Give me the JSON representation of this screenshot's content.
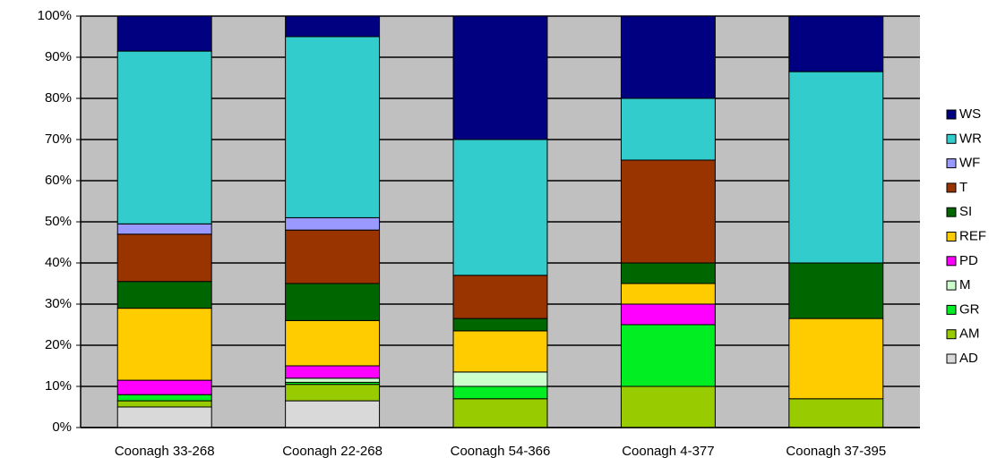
{
  "chart_data": {
    "type": "stacked_bar_percent",
    "categories": [
      "Coonagh 33-268",
      "Coonagh 22-268",
      "Coonagh 54-366",
      "Coonagh 4-377",
      "Coonagh 37-395"
    ],
    "series": [
      {
        "name": "AD",
        "color": "#d9d9d9",
        "values": [
          5,
          6.5,
          0,
          0,
          0
        ]
      },
      {
        "name": "AM",
        "color": "#99cc00",
        "values": [
          1.5,
          4,
          7,
          10,
          7
        ]
      },
      {
        "name": "GR",
        "color": "#00ee22",
        "values": [
          1.5,
          0.5,
          3,
          15,
          0
        ]
      },
      {
        "name": "M",
        "color": "#ccffcc",
        "values": [
          0,
          1,
          3.5,
          0,
          0
        ]
      },
      {
        "name": "PD",
        "color": "#ff00ff",
        "values": [
          3.5,
          3,
          0,
          5,
          0
        ]
      },
      {
        "name": "REF",
        "color": "#ffcc00",
        "values": [
          17.5,
          11,
          10,
          5,
          19.5
        ]
      },
      {
        "name": "SI",
        "color": "#006600",
        "values": [
          6.5,
          9,
          3,
          5,
          13.5
        ]
      },
      {
        "name": "T",
        "color": "#993300",
        "values": [
          11.5,
          13,
          10.5,
          25,
          0
        ]
      },
      {
        "name": "WF",
        "color": "#9999ff",
        "values": [
          2.5,
          3,
          0,
          0,
          0
        ]
      },
      {
        "name": "WR",
        "color": "#33cccc",
        "values": [
          42,
          44,
          33,
          15,
          46.5
        ]
      },
      {
        "name": "WS",
        "color": "#000080",
        "values": [
          8.5,
          5,
          30,
          20,
          13.5
        ]
      }
    ],
    "ylim": [
      0,
      100
    ],
    "yticks": [
      {
        "value": 0,
        "label": "0%"
      },
      {
        "value": 10,
        "label": "10%"
      },
      {
        "value": 20,
        "label": "20%"
      },
      {
        "value": 30,
        "label": "30%"
      },
      {
        "value": 40,
        "label": "40%"
      },
      {
        "value": 50,
        "label": "50%"
      },
      {
        "value": 60,
        "label": "60%"
      },
      {
        "value": 70,
        "label": "70%"
      },
      {
        "value": 80,
        "label": "80%"
      },
      {
        "value": 90,
        "label": "90%"
      },
      {
        "value": 100,
        "label": "100%"
      }
    ],
    "grid": true,
    "legend": "right"
  }
}
